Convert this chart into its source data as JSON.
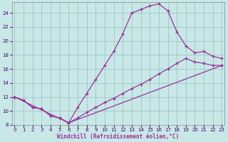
{
  "xlabel": "Windchill (Refroidissement éolien,°C)",
  "background_color": "#c8e8e8",
  "grid_color": "#a0c4c4",
  "line_color": "#993399",
  "xlim": [
    -0.3,
    23.3
  ],
  "ylim": [
    8,
    25.5
  ],
  "xticks": [
    0,
    1,
    2,
    3,
    4,
    5,
    6,
    7,
    8,
    9,
    10,
    11,
    12,
    13,
    14,
    15,
    16,
    17,
    18,
    19,
    20,
    21,
    22,
    23
  ],
  "yticks": [
    8,
    10,
    12,
    14,
    16,
    18,
    20,
    22,
    24
  ],
  "line1_x": [
    0,
    1,
    2,
    3,
    4,
    5,
    6,
    7,
    8,
    9,
    10,
    11,
    12,
    13,
    14,
    15,
    16,
    17,
    18,
    19,
    20,
    21,
    22,
    23
  ],
  "line1_y": [
    12.0,
    11.5,
    10.5,
    10.3,
    9.3,
    9.0,
    8.3,
    10.5,
    12.5,
    14.5,
    16.5,
    18.5,
    21.0,
    24.0,
    24.5,
    25.0,
    25.3,
    24.3,
    21.3,
    19.3,
    18.3,
    18.5,
    17.8,
    17.5
  ],
  "line2_x": [
    0,
    1,
    2,
    3,
    4,
    5,
    6,
    7,
    8,
    9,
    10,
    11,
    12,
    13,
    14,
    15,
    16,
    17,
    18,
    19,
    20,
    21,
    22,
    23
  ],
  "line2_y": [
    12.0,
    11.5,
    10.5,
    10.3,
    9.3,
    9.0,
    8.3,
    9.0,
    9.8,
    10.5,
    11.2,
    11.8,
    12.5,
    13.2,
    13.8,
    14.5,
    15.3,
    16.0,
    16.8,
    17.5,
    17.0,
    16.8,
    16.5,
    16.5
  ],
  "line3_x": [
    0,
    6,
    23
  ],
  "line3_y": [
    12.0,
    8.3,
    16.5
  ]
}
